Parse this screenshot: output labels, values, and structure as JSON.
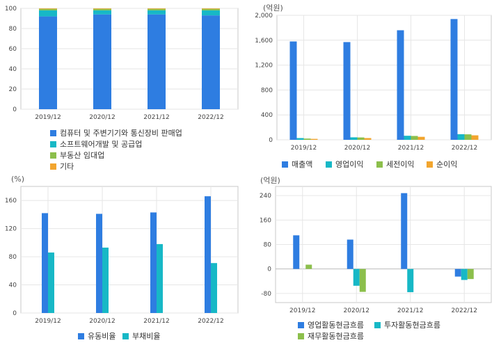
{
  "colors": {
    "blue": "#2e7de1",
    "cyan": "#17b8c6",
    "green": "#8cbf4c",
    "orange": "#f2a52e",
    "grid": "#e6e6e6",
    "axis": "#999999"
  },
  "chart_data": [
    {
      "id": "sales-composition",
      "type": "bar",
      "stacked": true,
      "unit": "",
      "categories": [
        "2019/12",
        "2020/12",
        "2021/12",
        "2022/12"
      ],
      "yticks": [
        0,
        20,
        40,
        60,
        80,
        100
      ],
      "ylim": [
        0,
        100
      ],
      "grid": true,
      "legend_position": "bottom",
      "series": [
        {
          "name": "컴퓨터 및 주변기기와 통신장비 판매업",
          "color": "blue",
          "values": [
            92,
            94,
            94,
            93
          ]
        },
        {
          "name": "소프트웨어개발 및 공급업",
          "color": "cyan",
          "values": [
            6,
            4,
            4,
            5
          ]
        },
        {
          "name": "부동산 임대업",
          "color": "green",
          "values": [
            1.5,
            1.5,
            1.5,
            1.5
          ]
        },
        {
          "name": "기타",
          "color": "orange",
          "values": [
            0.5,
            0.5,
            0.5,
            0.5
          ]
        }
      ]
    },
    {
      "id": "income",
      "type": "bar",
      "stacked": false,
      "unit": "(억원)",
      "categories": [
        "2019/12",
        "2020/12",
        "2021/12",
        "2022/12"
      ],
      "yticks": [
        0,
        400,
        800,
        1200,
        1600,
        2000
      ],
      "ytick_labels": [
        "0",
        "400",
        "800",
        "1,200",
        "1,600",
        "2,000"
      ],
      "ylim": [
        0,
        2000
      ],
      "grid": true,
      "legend_position": "bottom",
      "series": [
        {
          "name": "매출액",
          "color": "blue",
          "values": [
            1580,
            1570,
            1760,
            1940
          ]
        },
        {
          "name": "영업이익",
          "color": "cyan",
          "values": [
            28,
            40,
            65,
            90
          ]
        },
        {
          "name": "세전이익",
          "color": "green",
          "values": [
            20,
            38,
            62,
            88
          ]
        },
        {
          "name": "순이익",
          "color": "orange",
          "values": [
            15,
            28,
            48,
            72
          ]
        }
      ]
    },
    {
      "id": "ratios",
      "type": "bar",
      "stacked": false,
      "unit": "(%)",
      "categories": [
        "2019/12",
        "2020/12",
        "2021/12",
        "2022/12"
      ],
      "yticks": [
        0,
        40,
        80,
        120,
        160
      ],
      "ylim": [
        0,
        180
      ],
      "grid": true,
      "legend_position": "bottom",
      "series": [
        {
          "name": "유동비율",
          "color": "blue",
          "values": [
            142,
            141,
            143,
            166
          ]
        },
        {
          "name": "부채비율",
          "color": "cyan",
          "values": [
            86,
            93,
            98,
            71
          ]
        }
      ]
    },
    {
      "id": "cashflow",
      "type": "bar",
      "stacked": false,
      "unit": "(억원)",
      "categories": [
        "2019/12",
        "2020/12",
        "2021/12",
        "2022/12"
      ],
      "yticks": [
        -80,
        0,
        80,
        160,
        240
      ],
      "ylim": [
        -110,
        270
      ],
      "grid": true,
      "legend_position": "bottom",
      "series": [
        {
          "name": "영업활동현금흐름",
          "color": "blue",
          "values": [
            110,
            96,
            248,
            -25
          ]
        },
        {
          "name": "투자활동현금흐름",
          "color": "cyan",
          "values": [
            0,
            -55,
            -76,
            -36
          ]
        },
        {
          "name": "재무활동현금흐름",
          "color": "green",
          "values": [
            14,
            -75,
            0,
            -33
          ]
        }
      ]
    }
  ]
}
